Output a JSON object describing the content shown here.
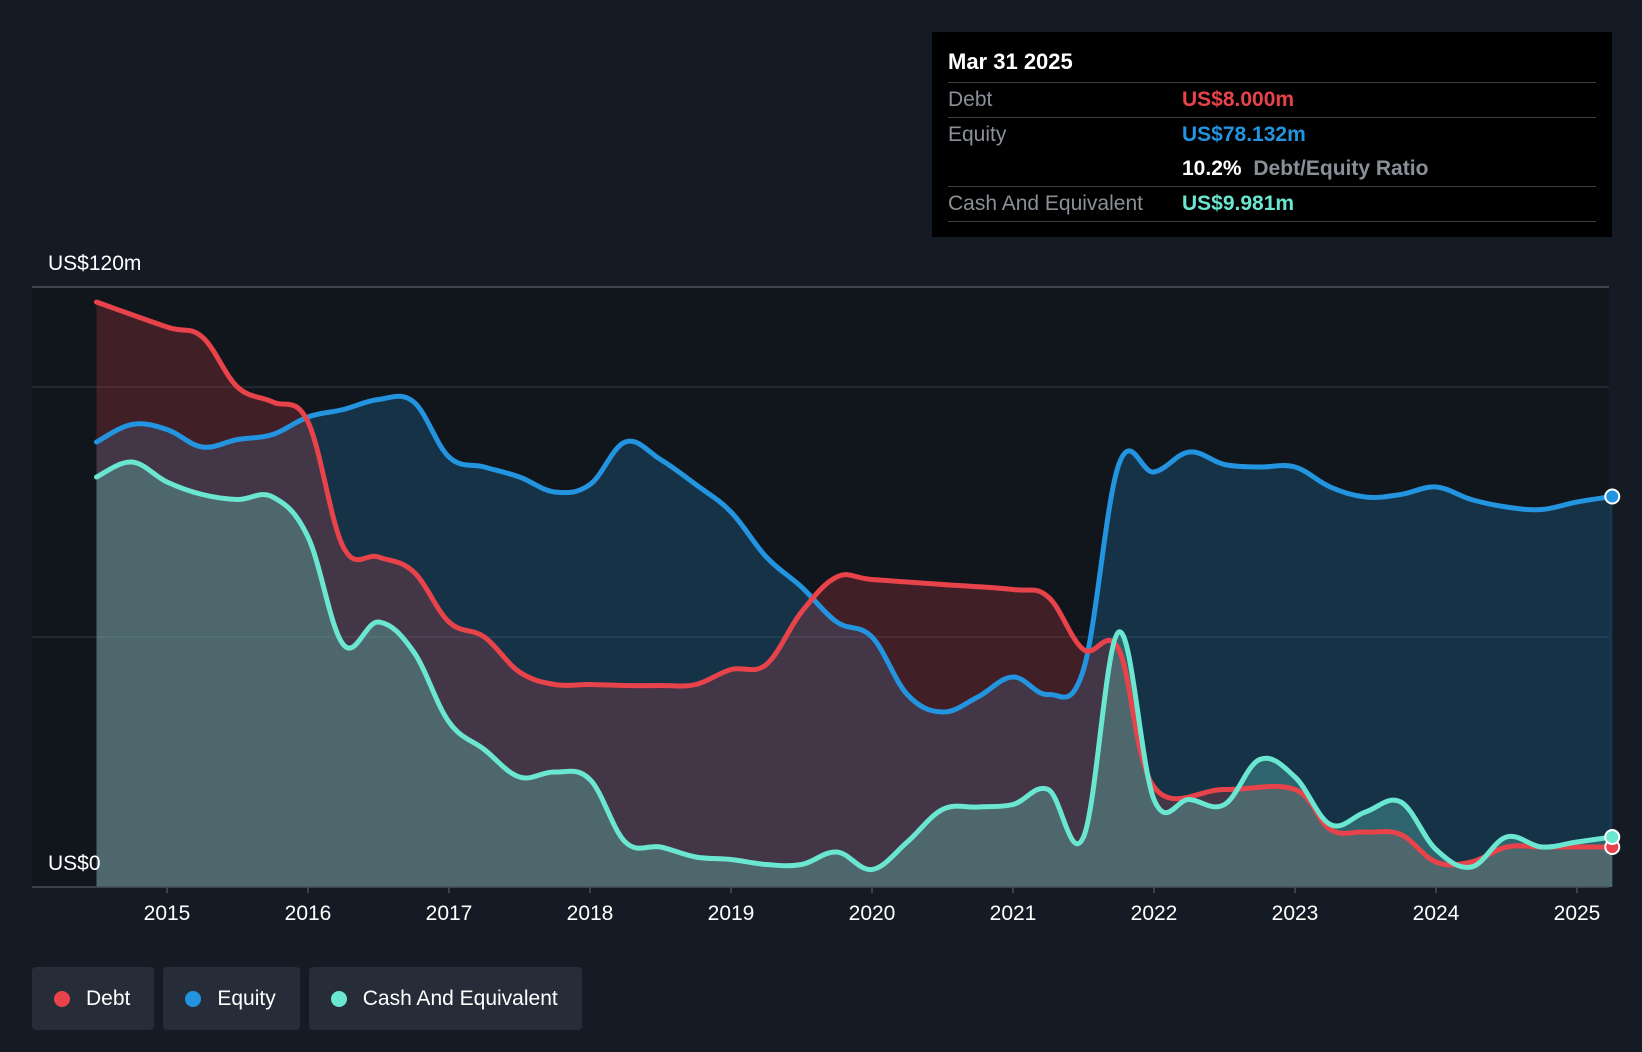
{
  "tooltip": {
    "date": "Mar 31 2025",
    "debt_label": "Debt",
    "debt_value": "US$8.000m",
    "equity_label": "Equity",
    "equity_value": "US$78.132m",
    "ratio_value": "10.2%",
    "ratio_label": "Debt/Equity Ratio",
    "cash_label": "Cash And Equivalent",
    "cash_value": "US$9.981m"
  },
  "legend": [
    {
      "label": "Debt",
      "color": "#e8434a"
    },
    {
      "label": "Equity",
      "color": "#2394df"
    },
    {
      "label": "Cash And Equivalent",
      "color": "#6ae6d1"
    }
  ],
  "chart_data": {
    "type": "area",
    "y_top_label": "US$120m",
    "y_bottom_label": "US$0",
    "ylim": [
      0,
      120
    ],
    "xlim": [
      2014.5,
      2025.25
    ],
    "x_ticks": [
      2015,
      2016,
      2017,
      2018,
      2019,
      2020,
      2021,
      2022,
      2023,
      2024,
      2025
    ],
    "x_tick_labels": [
      "2015",
      "2016",
      "2017",
      "2018",
      "2019",
      "2020",
      "2021",
      "2022",
      "2023",
      "2024",
      "2025"
    ],
    "gridlines_y": [
      50,
      100,
      120
    ],
    "legend_position": "bottom-left",
    "series": [
      {
        "name": "Debt",
        "color": "#e8434a",
        "x": [
          2014.5,
          2015.0,
          2015.25,
          2015.5,
          2015.75,
          2016.0,
          2016.25,
          2016.5,
          2016.75,
          2017.0,
          2017.25,
          2017.5,
          2017.75,
          2018.0,
          2018.25,
          2018.5,
          2018.75,
          2019.0,
          2019.25,
          2019.5,
          2019.75,
          2020.0,
          2020.5,
          2021.0,
          2021.25,
          2021.5,
          2021.75,
          2022.0,
          2022.5,
          2023.0,
          2023.25,
          2023.5,
          2023.75,
          2024.0,
          2024.25,
          2024.5,
          2024.75,
          2025.0,
          2025.25
        ],
        "values": [
          117,
          112,
          110,
          100,
          97,
          93,
          68,
          66,
          63,
          53,
          50,
          43,
          40.5,
          40.5,
          40.3,
          40.3,
          40.5,
          43.5,
          44.5,
          55,
          62,
          61.5,
          60.5,
          59.5,
          58,
          47.5,
          47.5,
          20,
          19.5,
          19.5,
          11.5,
          11,
          10.5,
          5,
          5,
          8,
          8,
          8,
          8
        ]
      },
      {
        "name": "Equity",
        "color": "#2394df",
        "x": [
          2014.5,
          2014.75,
          2015.0,
          2015.25,
          2015.5,
          2015.75,
          2016.0,
          2016.25,
          2016.5,
          2016.75,
          2017.0,
          2017.25,
          2017.5,
          2017.75,
          2018.0,
          2018.25,
          2018.5,
          2018.75,
          2019.0,
          2019.25,
          2019.5,
          2019.75,
          2020.0,
          2020.25,
          2020.5,
          2020.75,
          2021.0,
          2021.25,
          2021.5,
          2021.75,
          2022.0,
          2022.25,
          2022.5,
          2022.75,
          2023.0,
          2023.25,
          2023.5,
          2023.75,
          2024.0,
          2024.25,
          2024.5,
          2024.75,
          2025.0,
          2025.25
        ],
        "values": [
          89,
          92.5,
          91.5,
          88,
          89.5,
          90.5,
          94,
          95.5,
          97.5,
          97,
          86,
          84,
          82,
          79,
          80.5,
          89,
          85.5,
          80.5,
          75,
          66,
          60,
          53,
          50,
          38.5,
          35,
          38,
          42,
          38.5,
          43.5,
          84.5,
          83,
          87,
          84.5,
          84,
          84,
          80,
          78,
          78.5,
          80,
          77.5,
          76,
          75.5,
          77,
          78.1
        ]
      },
      {
        "name": "Cash And Equivalent",
        "color": "#6ae6d1",
        "x": [
          2014.5,
          2014.75,
          2015.0,
          2015.25,
          2015.5,
          2015.75,
          2016.0,
          2016.25,
          2016.5,
          2016.75,
          2017.0,
          2017.25,
          2017.5,
          2017.75,
          2018.0,
          2018.25,
          2018.5,
          2018.75,
          2019.0,
          2019.25,
          2019.5,
          2019.75,
          2020.0,
          2020.25,
          2020.5,
          2020.75,
          2021.0,
          2021.25,
          2021.5,
          2021.75,
          2022.0,
          2022.25,
          2022.5,
          2022.75,
          2023.0,
          2023.25,
          2023.5,
          2023.75,
          2024.0,
          2024.25,
          2024.5,
          2024.75,
          2025.0,
          2025.25
        ],
        "values": [
          82,
          85,
          81,
          78.5,
          77.5,
          78,
          70,
          48.5,
          53,
          47,
          33,
          27.5,
          22,
          23,
          21.5,
          9,
          8,
          6,
          5.5,
          4.5,
          4.5,
          7,
          3.5,
          9,
          15.5,
          16,
          16.5,
          19.5,
          10,
          51,
          17.5,
          17.5,
          16.5,
          25.5,
          22,
          12.5,
          15,
          17,
          7.5,
          4,
          10,
          8,
          9,
          10.0
        ]
      }
    ]
  }
}
